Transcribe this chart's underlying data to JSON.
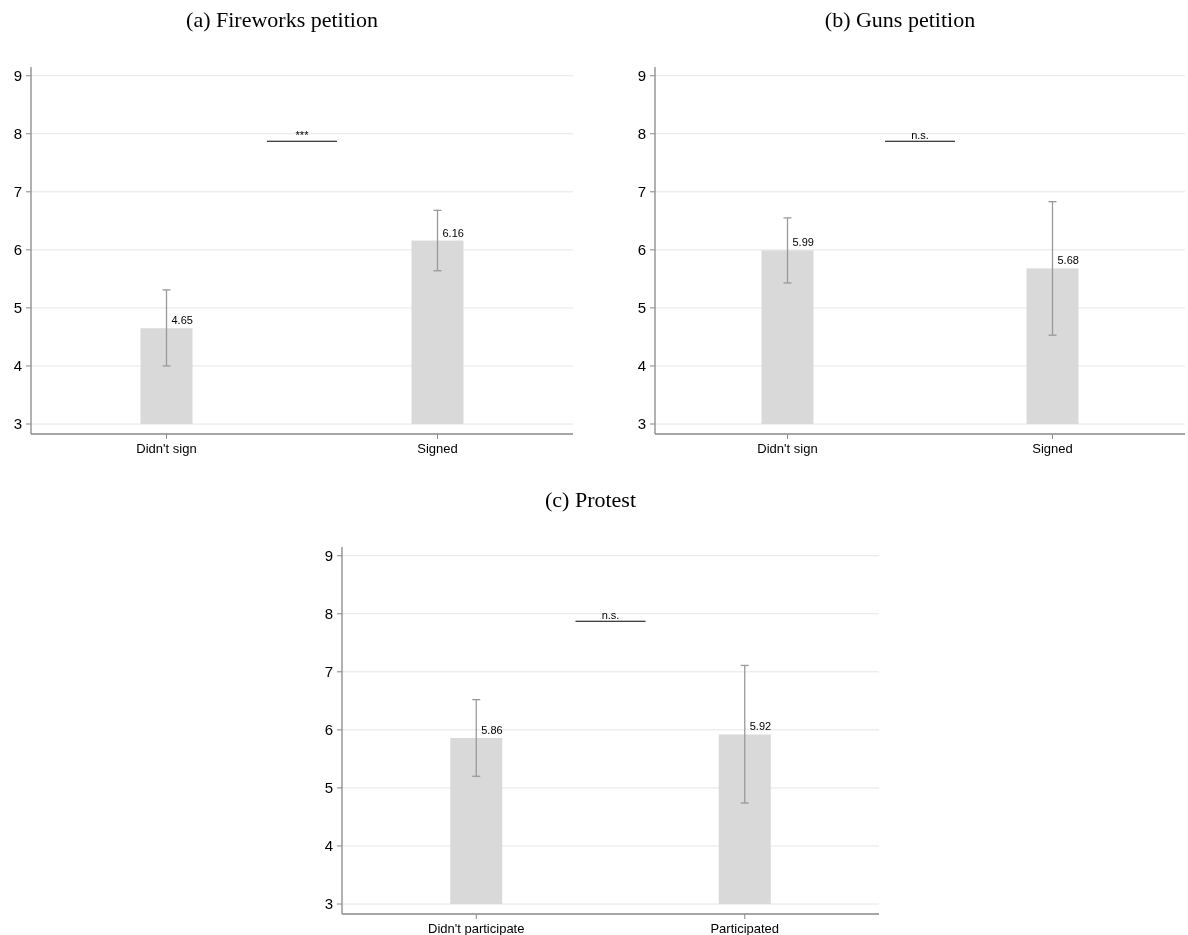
{
  "chart_data": [
    {
      "type": "bar",
      "title": "(a) Fireworks petition",
      "categories": [
        "Didn't sign",
        "Signed"
      ],
      "values": [
        4.65,
        6.16
      ],
      "errors": [
        [
          4.0,
          5.31
        ],
        [
          5.64,
          6.68
        ]
      ],
      "color": "#d9d9d9",
      "ylim": [
        3,
        9.15
      ],
      "yticks": [
        3,
        4,
        5,
        6,
        7,
        8,
        9
      ],
      "grid": "y",
      "data_labels": true,
      "annotations": [
        "***"
      ]
    },
    {
      "type": "bar",
      "title": "(b) Guns petition",
      "categories": [
        "Didn't sign",
        "Signed"
      ],
      "values": [
        5.99,
        5.68
      ],
      "errors": [
        [
          5.43,
          6.55
        ],
        [
          4.53,
          6.83
        ]
      ],
      "color": "#d9d9d9",
      "ylim": [
        3,
        9.15
      ],
      "yticks": [
        3,
        4,
        5,
        6,
        7,
        8,
        9
      ],
      "grid": "y",
      "data_labels": true,
      "annotations": [
        "n.s."
      ]
    },
    {
      "type": "bar",
      "title": "(c) Protest",
      "categories": [
        "Didn't participate",
        "Participated"
      ],
      "values": [
        5.86,
        5.92
      ],
      "errors": [
        [
          5.2,
          6.52
        ],
        [
          4.74,
          7.11
        ]
      ],
      "color": "#d9d9d9",
      "ylim": [
        3,
        9.15
      ],
      "yticks": [
        3,
        4,
        5,
        6,
        7,
        8,
        9
      ],
      "grid": "y",
      "data_labels": true,
      "annotations": [
        "n.s."
      ]
    }
  ]
}
